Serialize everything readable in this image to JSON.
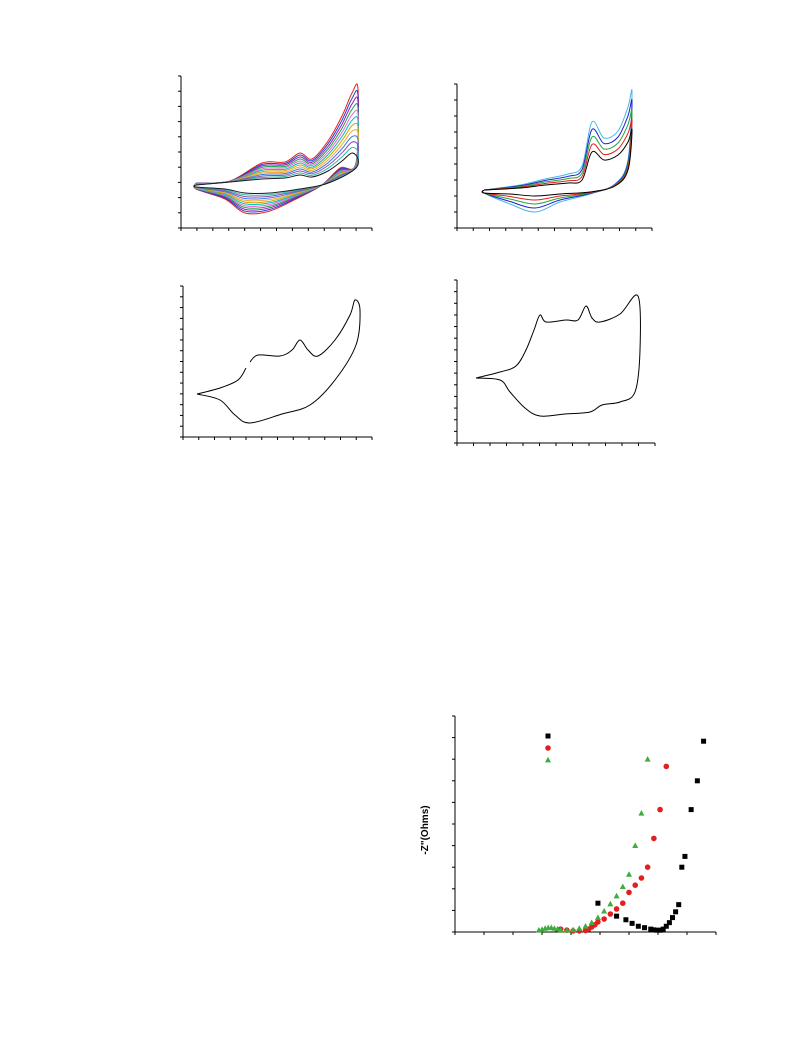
{
  "chart_data": [
    {
      "type": "line",
      "panel": "top-left",
      "grid": false,
      "xticks": 12,
      "yticks": 10,
      "series_colors": [
        "#e8201c",
        "#1f3fd0",
        "#9b1ab8",
        "#1ca34a",
        "#e86ad2",
        "#00b8c8",
        "#c9a300",
        "#f2a73c",
        "#3d7be0",
        "#8c4fb3",
        "#2fb9a8",
        "#1a1a1a"
      ],
      "note_series_count": 12
    },
    {
      "type": "line",
      "panel": "top-right",
      "grid": false,
      "xticks": 12,
      "yticks": 9,
      "series_colors": [
        "#49b7e8",
        "#1f1fd0",
        "#23a63a",
        "#e41e1e",
        "#000000"
      ],
      "note_series_count": 5
    },
    {
      "type": "line",
      "panel": "bottom-left",
      "grid": false,
      "xticks": 12,
      "yticks": 14,
      "series_colors": [
        "#000000"
      ]
    },
    {
      "type": "line",
      "panel": "bottom-right",
      "grid": false,
      "xticks": 12,
      "yticks": 14,
      "series_colors": [
        "#000000"
      ]
    },
    {
      "type": "scatter",
      "panel": "nyquist",
      "ylabel": "-Z\"(Ohms)",
      "grid": false,
      "xticks": 9,
      "yticks": 10,
      "series": [
        {
          "color": "#000000",
          "marker": "square",
          "points": [
            [
              530,
              40
            ],
            [
              560,
              22
            ],
            [
              575,
              17
            ],
            [
              585,
              12
            ],
            [
              595,
              8
            ],
            [
              605,
              6
            ],
            [
              615,
              4
            ],
            [
              620,
              3
            ],
            [
              625,
              2.5
            ],
            [
              630,
              2.5
            ],
            [
              635,
              4
            ],
            [
              640,
              8
            ],
            [
              645,
              13
            ],
            [
              650,
              20
            ],
            [
              655,
              28
            ],
            [
              660,
              38
            ],
            [
              665,
              90
            ],
            [
              670,
              105
            ],
            [
              680,
              170
            ],
            [
              690,
              210
            ],
            [
              700,
              265
            ]
          ]
        },
        {
          "color": "#e41e1e",
          "marker": "circle",
          "points": [
            [
              470,
              4
            ],
            [
              480,
              2.5
            ],
            [
              490,
              1.5
            ],
            [
              500,
              1.5
            ],
            [
              510,
              2
            ],
            [
              515,
              4
            ],
            [
              520,
              7
            ],
            [
              525,
              10
            ],
            [
              530,
              14
            ],
            [
              540,
              18
            ],
            [
              550,
              25
            ],
            [
              560,
              32
            ],
            [
              570,
              40
            ],
            [
              580,
              55
            ],
            [
              590,
              65
            ],
            [
              600,
              75
            ],
            [
              610,
              90
            ],
            [
              620,
              130
            ],
            [
              630,
              170
            ],
            [
              640,
              230
            ]
          ]
        },
        {
          "color": "#3cae3c",
          "marker": "triangle",
          "points": [
            [
              435,
              2.5
            ],
            [
              440,
              3.5
            ],
            [
              445,
              5
            ],
            [
              450,
              6
            ],
            [
              455,
              6
            ],
            [
              460,
              5
            ],
            [
              465,
              4
            ],
            [
              470,
              3
            ],
            [
              480,
              2.5
            ],
            [
              490,
              3
            ],
            [
              500,
              5
            ],
            [
              510,
              8
            ],
            [
              520,
              13
            ],
            [
              530,
              20
            ],
            [
              540,
              29
            ],
            [
              550,
              39
            ],
            [
              560,
              50
            ],
            [
              570,
              63
            ],
            [
              580,
              80
            ],
            [
              590,
              120
            ],
            [
              600,
              165
            ],
            [
              610,
              240
            ]
          ]
        }
      ],
      "legend_markers": [
        "square",
        "circle",
        "triangle"
      ]
    }
  ]
}
